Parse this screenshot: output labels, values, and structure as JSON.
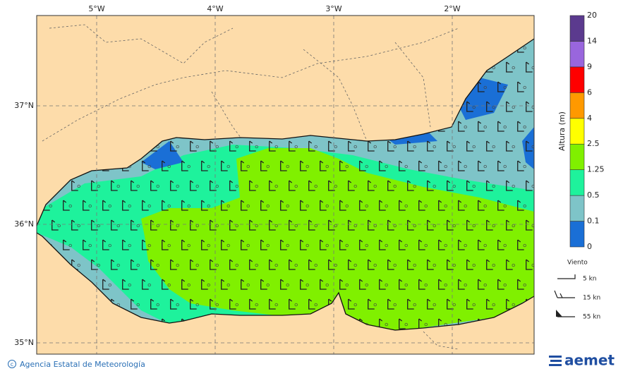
{
  "map": {
    "lon_labels": [
      "5°W",
      "4°W",
      "3°W",
      "2°W"
    ],
    "lat_labels": [
      "37°N",
      "36°N",
      "35°N"
    ],
    "colorbar": {
      "title": "Altura (m)",
      "levels": [
        0,
        0.1,
        0.5,
        1.25,
        2.5,
        4,
        6,
        9,
        14,
        20
      ],
      "colors": [
        "#1a6fd6",
        "#7ec4c8",
        "#1ef29c",
        "#80f000",
        "#ffff00",
        "#ff9900",
        "#ff0000",
        "#9966dd",
        "#5b3a8e"
      ]
    }
  },
  "legend": {
    "title": "Viento",
    "items": [
      "5 kn",
      "15 kn",
      "55 kn"
    ]
  },
  "footer": {
    "agency": "Agencia Estatal de Meteorología",
    "logo": "aemet"
  }
}
